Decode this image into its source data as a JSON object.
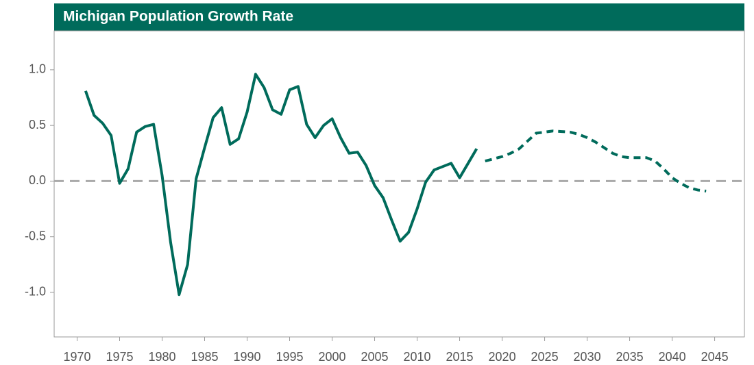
{
  "chart_data": {
    "type": "line",
    "title": "Michigan Population Growth Rate",
    "series": [
      {
        "color": "#006b5b",
        "style": "solid",
        "x": [
          1971,
          1972,
          1973,
          1974,
          1975,
          1976,
          1977,
          1978,
          1979,
          1980,
          1981,
          1982,
          1983,
          1984,
          1985,
          1986,
          1987,
          1988,
          1989,
          1990,
          1991,
          1992,
          1993,
          1994,
          1995,
          1996,
          1997,
          1998,
          1999,
          2000,
          2001,
          2002,
          2003,
          2004,
          2005,
          2006,
          2007,
          2008,
          2009,
          2010,
          2011,
          2012,
          2013,
          2014,
          2015,
          2016,
          2017
        ],
        "values": [
          0.81,
          0.59,
          0.52,
          0.41,
          -0.02,
          0.11,
          0.44,
          0.49,
          0.51,
          0.05,
          -0.55,
          -1.02,
          -0.75,
          0.02,
          0.3,
          0.57,
          0.66,
          0.33,
          0.38,
          0.62,
          0.96,
          0.84,
          0.64,
          0.6,
          0.82,
          0.85,
          0.51,
          0.39,
          0.5,
          0.56,
          0.39,
          0.25,
          0.26,
          0.14,
          -0.04,
          -0.15,
          -0.35,
          -0.54,
          -0.46,
          -0.25,
          -0.01,
          0.1,
          0.13,
          0.16,
          0.03,
          0.16,
          0.29
        ]
      },
      {
        "color": "#006b5b",
        "style": "dashed",
        "x": [
          2018,
          2019,
          2020,
          2021,
          2022,
          2023,
          2024,
          2025,
          2026,
          2027,
          2028,
          2029,
          2030,
          2031,
          2032,
          2033,
          2034,
          2035,
          2036,
          2037,
          2038,
          2039,
          2040,
          2041,
          2042,
          2043,
          2044
        ],
        "values": [
          0.18,
          0.2,
          0.22,
          0.25,
          0.29,
          0.36,
          0.43,
          0.44,
          0.45,
          0.445,
          0.44,
          0.42,
          0.39,
          0.35,
          0.3,
          0.25,
          0.22,
          0.21,
          0.21,
          0.21,
          0.18,
          0.11,
          0.03,
          -0.02,
          -0.06,
          -0.08,
          -0.09
        ]
      }
    ],
    "reference_line": 0,
    "xlim": [
      1967.3,
      2048.5
    ],
    "xticks": [
      1970,
      1975,
      1980,
      1985,
      1990,
      1995,
      2000,
      2005,
      2010,
      2015,
      2020,
      2025,
      2030,
      2035,
      2040,
      2045
    ],
    "ylim": [
      -1.4,
      1.35
    ],
    "yticks": [
      {
        "value": 1,
        "label": "1.0"
      },
      0.5,
      {
        "value": 0,
        "label": "0.0"
      },
      -0.5,
      {
        "value": -1,
        "label": "-1.0"
      }
    ]
  }
}
